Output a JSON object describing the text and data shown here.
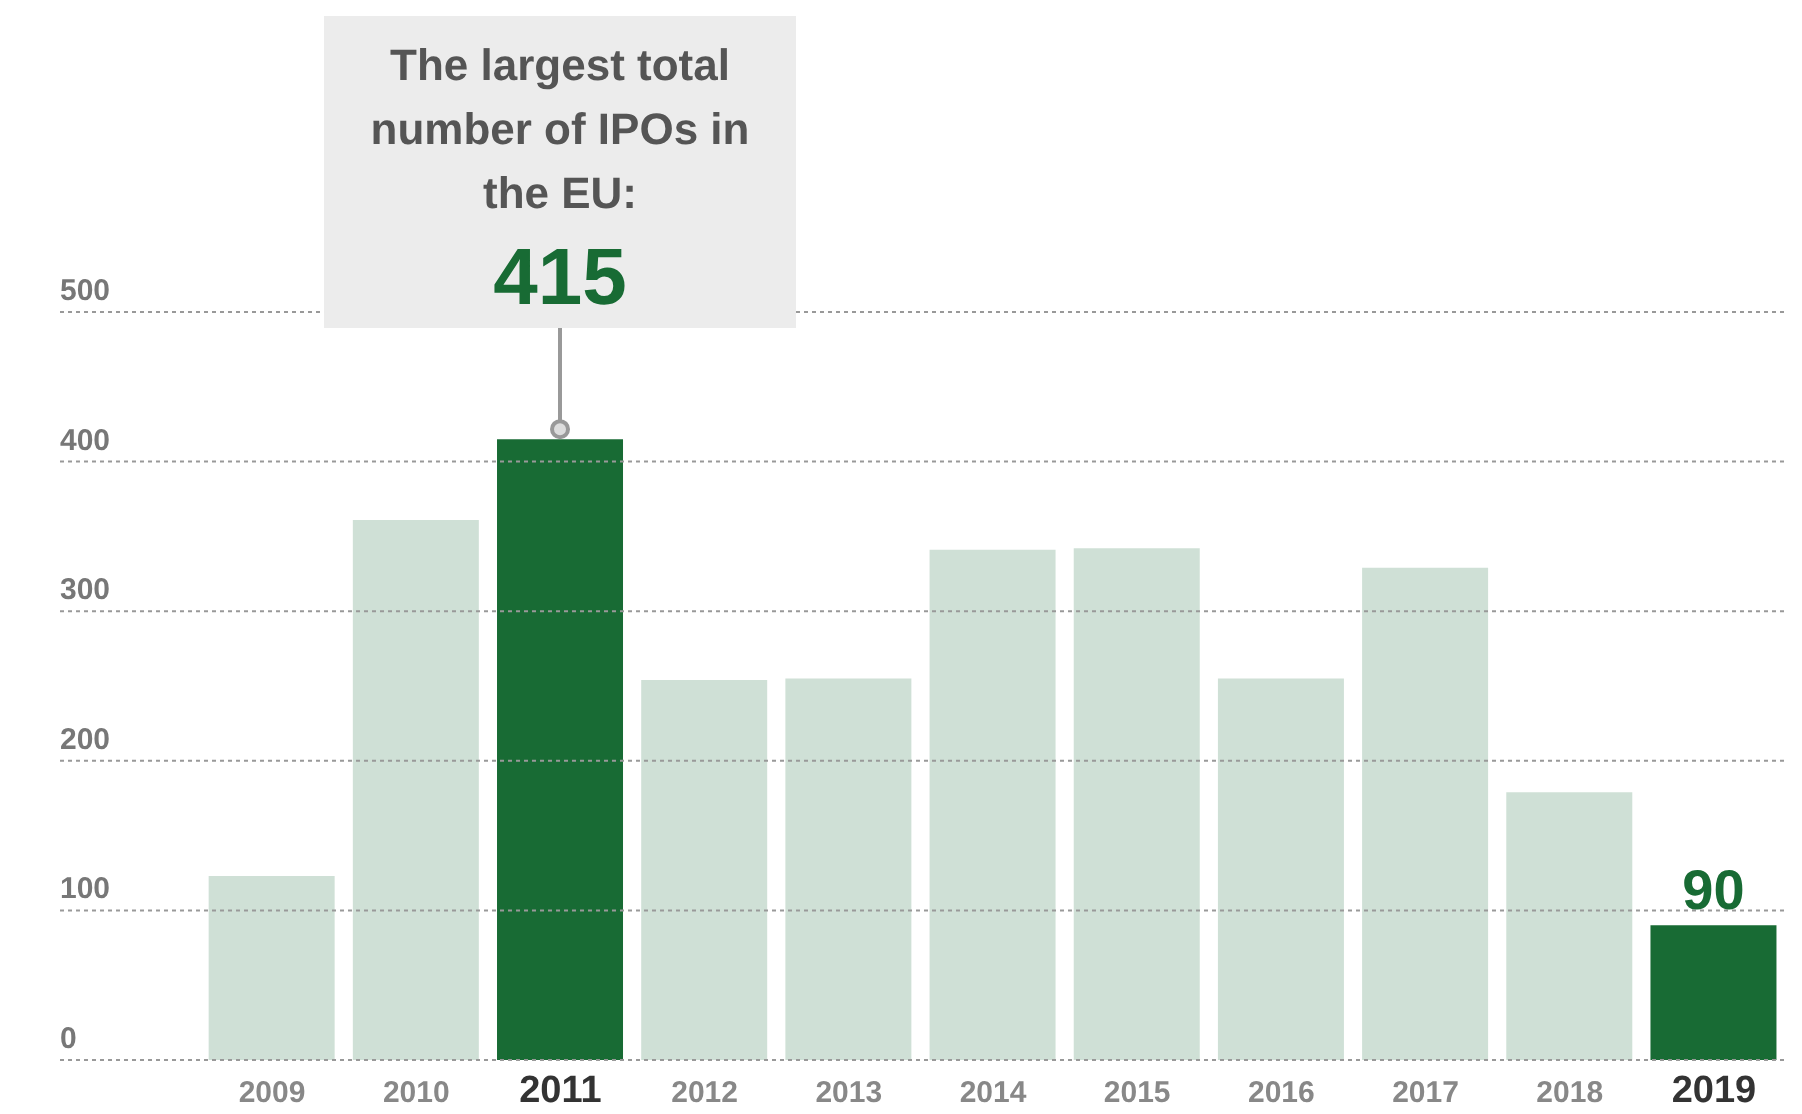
{
  "chart_data": {
    "type": "bar",
    "categories": [
      "2009",
      "2010",
      "2011",
      "2012",
      "2013",
      "2014",
      "2015",
      "2016",
      "2017",
      "2018",
      "2019"
    ],
    "values": [
      123,
      361,
      415,
      254,
      255,
      341,
      342,
      255,
      329,
      179,
      90
    ],
    "colors": [
      "#cfe0d6",
      "#cfe0d6",
      "#186b34",
      "#cfe0d6",
      "#cfe0d6",
      "#cfe0d6",
      "#cfe0d6",
      "#cfe0d6",
      "#cfe0d6",
      "#cfe0d6",
      "#186b34"
    ],
    "value_labels": [
      null,
      null,
      "415",
      null,
      null,
      null,
      null,
      null,
      null,
      null,
      "90"
    ],
    "annotations": [
      "The largest total number of IPOs in the EU:"
    ],
    "ylim": [
      0,
      500
    ],
    "yticks": [
      0,
      100,
      200,
      300,
      400,
      500
    ],
    "grid": "y",
    "legend": false
  }
}
